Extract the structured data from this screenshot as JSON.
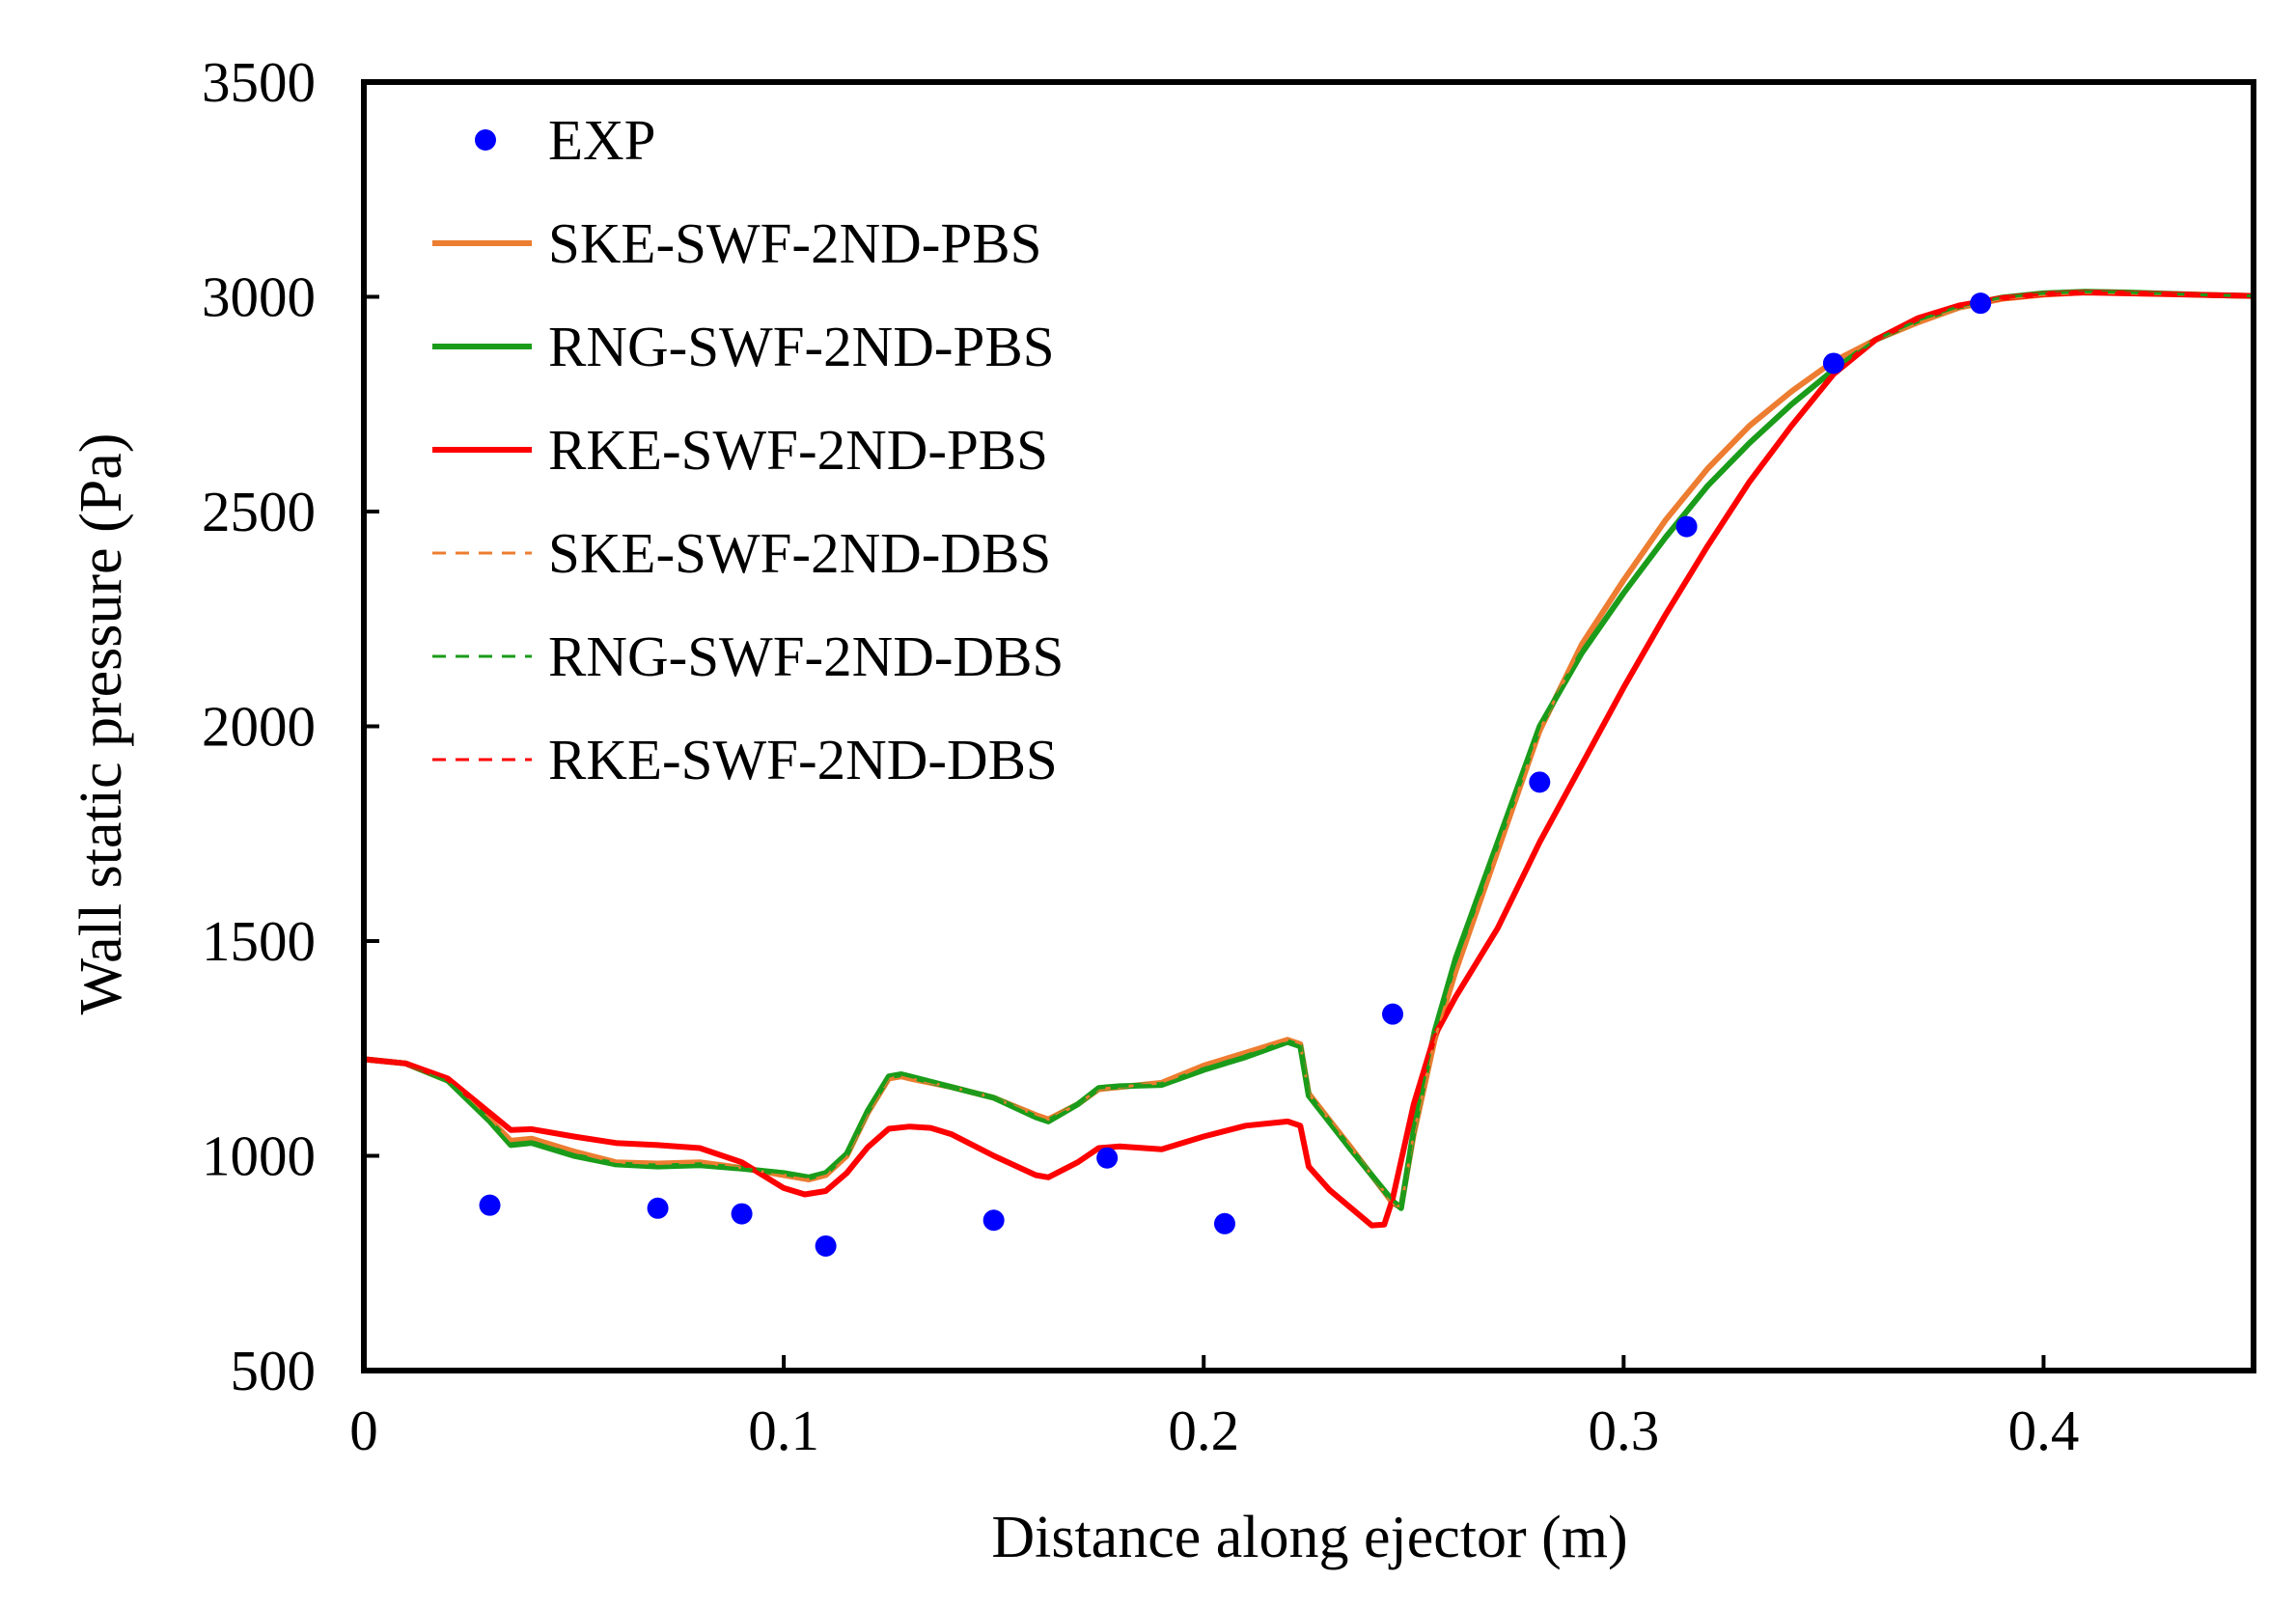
{
  "chart_data": {
    "type": "line",
    "title": "",
    "xlabel": "Distance along ejector (m)",
    "ylabel": "Wall static pressure (Pa)",
    "xlim": [
      0,
      0.45
    ],
    "ylim": [
      500,
      3500
    ],
    "xticks": [
      0,
      0.1,
      0.2,
      0.3,
      0.4
    ],
    "xtick_labels": [
      "0",
      "0.1",
      "0.2",
      "0.3",
      "0.4"
    ],
    "yticks": [
      500,
      1000,
      1500,
      2000,
      2500,
      3000,
      3500
    ],
    "ytick_labels": [
      "500",
      "1000",
      "1500",
      "2000",
      "2500",
      "3000",
      "3500"
    ],
    "grid": false,
    "legend_position": "top-left",
    "series": [
      {
        "name": "EXP",
        "kind": "scatter",
        "color": "#0000ff",
        "dash": "none",
        "x": [
          0.03,
          0.07,
          0.09,
          0.11,
          0.15,
          0.177,
          0.205,
          0.245,
          0.28,
          0.315,
          0.35,
          0.385
        ],
        "y": [
          885,
          878,
          865,
          790,
          850,
          995,
          842,
          1330,
          1870,
          2465,
          2845,
          2985
        ]
      },
      {
        "name": "SKE-SWF-2ND-PBS",
        "kind": "line",
        "color": "#ed7d31",
        "dash": "none",
        "x": [
          0,
          0.01,
          0.02,
          0.03,
          0.035,
          0.04,
          0.05,
          0.06,
          0.07,
          0.08,
          0.09,
          0.1,
          0.106,
          0.11,
          0.115,
          0.12,
          0.125,
          0.128,
          0.13,
          0.14,
          0.15,
          0.16,
          0.163,
          0.17,
          0.175,
          0.18,
          0.19,
          0.2,
          0.21,
          0.22,
          0.223,
          0.225,
          0.235,
          0.245,
          0.247,
          0.25,
          0.255,
          0.26,
          0.27,
          0.28,
          0.29,
          0.3,
          0.31,
          0.32,
          0.33,
          0.34,
          0.35,
          0.36,
          0.37,
          0.38,
          0.39,
          0.4,
          0.41,
          0.42,
          0.43,
          0.44,
          0.45
        ],
        "y": [
          1225,
          1215,
          1175,
          1085,
          1035,
          1040,
          1010,
          985,
          982,
          985,
          972,
          955,
          945,
          955,
          1000,
          1100,
          1180,
          1185,
          1180,
          1160,
          1135,
          1095,
          1085,
          1120,
          1155,
          1160,
          1170,
          1210,
          1240,
          1270,
          1260,
          1145,
          1020,
          890,
          880,
          1050,
          1270,
          1430,
          1710,
          1990,
          2190,
          2340,
          2480,
          2600,
          2700,
          2780,
          2850,
          2900,
          2940,
          2975,
          2995,
          3005,
          3010,
          3008,
          3006,
          3004,
          3002
        ]
      },
      {
        "name": "RNG-SWF-2ND-PBS",
        "kind": "line",
        "color": "#1a9c1a",
        "dash": "none",
        "x": [
          0,
          0.01,
          0.02,
          0.03,
          0.035,
          0.04,
          0.05,
          0.06,
          0.07,
          0.08,
          0.09,
          0.1,
          0.106,
          0.11,
          0.115,
          0.12,
          0.125,
          0.128,
          0.13,
          0.14,
          0.15,
          0.16,
          0.163,
          0.17,
          0.175,
          0.18,
          0.19,
          0.2,
          0.21,
          0.22,
          0.223,
          0.225,
          0.235,
          0.245,
          0.247,
          0.25,
          0.255,
          0.26,
          0.27,
          0.28,
          0.29,
          0.3,
          0.31,
          0.32,
          0.33,
          0.34,
          0.35,
          0.36,
          0.37,
          0.38,
          0.39,
          0.4,
          0.41,
          0.42,
          0.43,
          0.44,
          0.45
        ],
        "y": [
          1225,
          1215,
          1175,
          1080,
          1025,
          1030,
          1000,
          980,
          975,
          978,
          970,
          960,
          950,
          960,
          1005,
          1105,
          1185,
          1190,
          1185,
          1160,
          1135,
          1090,
          1080,
          1120,
          1158,
          1162,
          1165,
          1200,
          1230,
          1265,
          1255,
          1140,
          1015,
          895,
          878,
          1060,
          1290,
          1460,
          1730,
          2000,
          2170,
          2310,
          2440,
          2560,
          2660,
          2750,
          2830,
          2900,
          2945,
          2978,
          2998,
          3008,
          3012,
          3010,
          3007,
          3004,
          3002
        ]
      },
      {
        "name": "RKE-SWF-2ND-PBS",
        "kind": "line",
        "color": "#ff0000",
        "dash": "none",
        "x": [
          0,
          0.01,
          0.02,
          0.03,
          0.035,
          0.04,
          0.05,
          0.06,
          0.07,
          0.08,
          0.09,
          0.1,
          0.105,
          0.11,
          0.115,
          0.12,
          0.125,
          0.13,
          0.135,
          0.14,
          0.15,
          0.16,
          0.163,
          0.17,
          0.175,
          0.18,
          0.19,
          0.2,
          0.21,
          0.22,
          0.223,
          0.225,
          0.23,
          0.24,
          0.243,
          0.245,
          0.25,
          0.255,
          0.26,
          0.27,
          0.28,
          0.29,
          0.3,
          0.31,
          0.32,
          0.33,
          0.34,
          0.35,
          0.36,
          0.37,
          0.38,
          0.39,
          0.4,
          0.41,
          0.42,
          0.43,
          0.44,
          0.45
        ],
        "y": [
          1225,
          1215,
          1180,
          1100,
          1060,
          1062,
          1045,
          1030,
          1025,
          1018,
          985,
          925,
          910,
          918,
          960,
          1020,
          1063,
          1068,
          1065,
          1050,
          1000,
          955,
          950,
          985,
          1018,
          1022,
          1015,
          1045,
          1070,
          1080,
          1070,
          975,
          920,
          838,
          840,
          900,
          1120,
          1280,
          1370,
          1530,
          1730,
          1910,
          2090,
          2260,
          2420,
          2570,
          2700,
          2820,
          2900,
          2950,
          2980,
          2997,
          3006,
          3010,
          3008,
          3006,
          3004,
          3002
        ]
      },
      {
        "name": "SKE-SWF-2ND-DBS",
        "kind": "line",
        "color": "#ed7d31",
        "dash": "dashed",
        "x": [
          0,
          0.01,
          0.02,
          0.03,
          0.035,
          0.04,
          0.05,
          0.06,
          0.07,
          0.08,
          0.09,
          0.1,
          0.106,
          0.11,
          0.115,
          0.12,
          0.125,
          0.128,
          0.13,
          0.14,
          0.15,
          0.16,
          0.163,
          0.17,
          0.175,
          0.18,
          0.19,
          0.2,
          0.21,
          0.22,
          0.223,
          0.225,
          0.235,
          0.245,
          0.247,
          0.25,
          0.255,
          0.26,
          0.27,
          0.28,
          0.29,
          0.3,
          0.31,
          0.32,
          0.33,
          0.34,
          0.35,
          0.36,
          0.37,
          0.38,
          0.39,
          0.4,
          0.41,
          0.42,
          0.43,
          0.44,
          0.45
        ],
        "y": [
          1225,
          1215,
          1175,
          1085,
          1035,
          1040,
          1010,
          985,
          982,
          985,
          972,
          955,
          945,
          955,
          1000,
          1100,
          1180,
          1185,
          1180,
          1160,
          1135,
          1095,
          1085,
          1120,
          1155,
          1160,
          1170,
          1210,
          1240,
          1270,
          1260,
          1145,
          1020,
          890,
          880,
          1050,
          1270,
          1430,
          1710,
          1990,
          2190,
          2340,
          2480,
          2600,
          2700,
          2780,
          2850,
          2900,
          2940,
          2975,
          2995,
          3005,
          3010,
          3008,
          3006,
          3004,
          3002
        ]
      },
      {
        "name": "RNG-SWF-2ND-DBS",
        "kind": "line",
        "color": "#1a9c1a",
        "dash": "dashed",
        "x": [
          0,
          0.01,
          0.02,
          0.03,
          0.035,
          0.04,
          0.05,
          0.06,
          0.07,
          0.08,
          0.09,
          0.1,
          0.106,
          0.11,
          0.115,
          0.12,
          0.125,
          0.128,
          0.13,
          0.14,
          0.15,
          0.16,
          0.163,
          0.17,
          0.175,
          0.18,
          0.19,
          0.2,
          0.21,
          0.22,
          0.223,
          0.225,
          0.235,
          0.245,
          0.247,
          0.25,
          0.255,
          0.26,
          0.27,
          0.28,
          0.29,
          0.3,
          0.31,
          0.32,
          0.33,
          0.34,
          0.35,
          0.36,
          0.37,
          0.38,
          0.39,
          0.4,
          0.41,
          0.42,
          0.43,
          0.44,
          0.45
        ],
        "y": [
          1225,
          1215,
          1175,
          1080,
          1025,
          1030,
          1000,
          980,
          975,
          978,
          970,
          960,
          950,
          960,
          1005,
          1105,
          1185,
          1190,
          1185,
          1160,
          1135,
          1090,
          1080,
          1120,
          1158,
          1162,
          1165,
          1200,
          1230,
          1265,
          1255,
          1140,
          1015,
          895,
          878,
          1060,
          1290,
          1460,
          1730,
          2000,
          2170,
          2310,
          2440,
          2560,
          2660,
          2750,
          2830,
          2900,
          2945,
          2978,
          2998,
          3008,
          3012,
          3010,
          3007,
          3004,
          3002
        ]
      },
      {
        "name": "RKE-SWF-2ND-DBS",
        "kind": "line",
        "color": "#ff0000",
        "dash": "dashed",
        "x": [
          0,
          0.01,
          0.02,
          0.03,
          0.035,
          0.04,
          0.05,
          0.06,
          0.07,
          0.08,
          0.09,
          0.1,
          0.105,
          0.11,
          0.115,
          0.12,
          0.125,
          0.13,
          0.135,
          0.14,
          0.15,
          0.16,
          0.163,
          0.17,
          0.175,
          0.18,
          0.19,
          0.2,
          0.21,
          0.22,
          0.223,
          0.225,
          0.23,
          0.24,
          0.243,
          0.245,
          0.25,
          0.255,
          0.26,
          0.27,
          0.28,
          0.29,
          0.3,
          0.31,
          0.32,
          0.33,
          0.34,
          0.35,
          0.36,
          0.37,
          0.38,
          0.39,
          0.4,
          0.41,
          0.42,
          0.43,
          0.44,
          0.45
        ],
        "y": [
          1225,
          1215,
          1180,
          1100,
          1060,
          1062,
          1045,
          1030,
          1025,
          1018,
          985,
          925,
          910,
          918,
          960,
          1020,
          1063,
          1068,
          1065,
          1050,
          1000,
          955,
          950,
          985,
          1018,
          1022,
          1015,
          1045,
          1070,
          1080,
          1070,
          975,
          920,
          838,
          840,
          900,
          1120,
          1280,
          1370,
          1530,
          1730,
          1910,
          2090,
          2260,
          2420,
          2570,
          2700,
          2820,
          2900,
          2950,
          2980,
          2997,
          3006,
          3010,
          3008,
          3006,
          3004,
          3002
        ]
      }
    ]
  }
}
